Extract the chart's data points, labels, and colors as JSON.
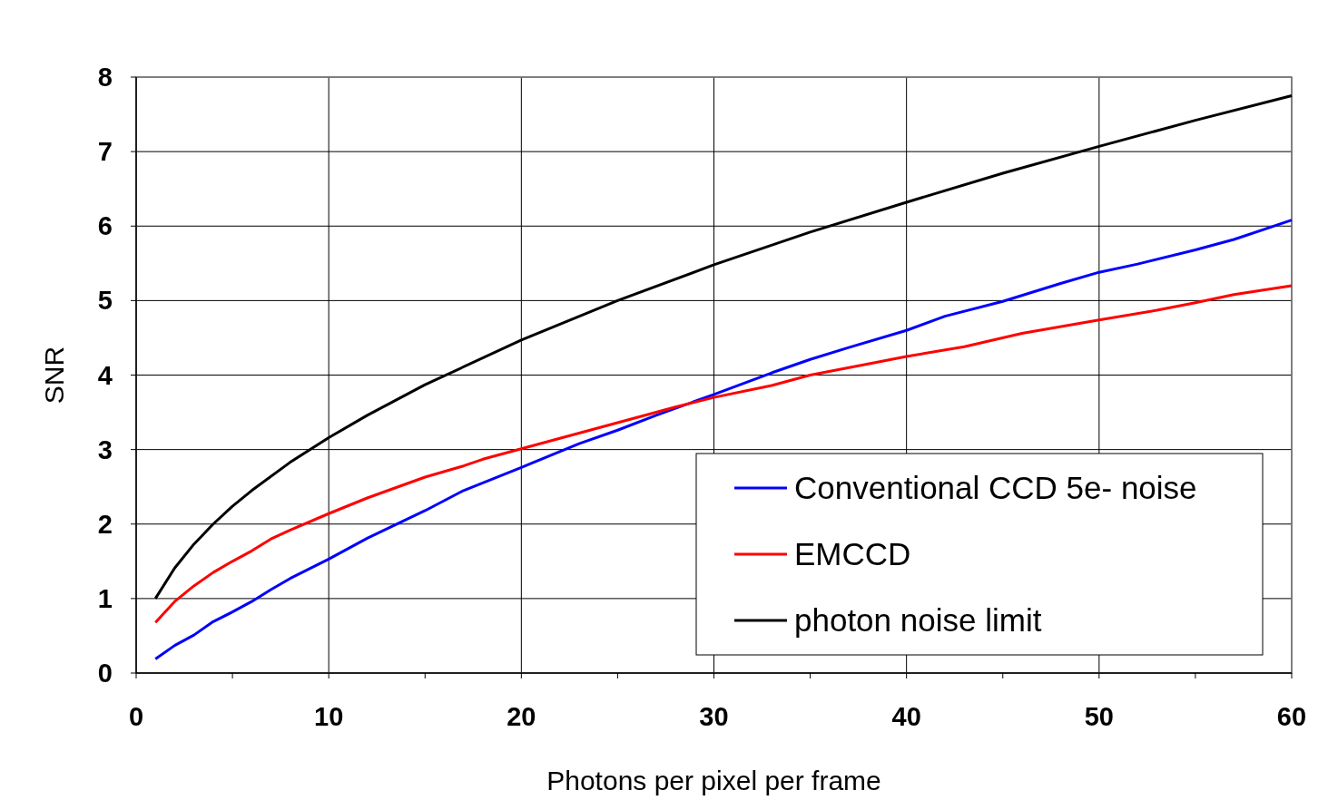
{
  "chart_data": {
    "type": "line",
    "xlabel": "Photons per pixel per frame",
    "ylabel": "SNR",
    "xlim": [
      0,
      60
    ],
    "ylim": [
      0,
      8
    ],
    "xticks": [
      0,
      {
        "value": 5,
        "label": null
      },
      10,
      {
        "value": 15,
        "label": null
      },
      20,
      {
        "value": 25,
        "label": null
      },
      30,
      {
        "value": 35,
        "label": null
      },
      40,
      {
        "value": 45,
        "label": null
      },
      50,
      {
        "value": 55,
        "label": null
      },
      60
    ],
    "yticks": [
      0,
      1,
      2,
      3,
      4,
      5,
      6,
      7,
      8
    ],
    "grid": true,
    "legend": "bottom right",
    "marker": "none",
    "line_style": "solid",
    "series": [
      {
        "name": "Conventional CCD 5e- noise",
        "color": "#0000ff",
        "x": [
          1,
          2,
          3,
          4,
          5,
          6,
          7,
          8,
          10,
          12,
          15,
          17,
          20,
          23,
          25,
          27,
          30,
          33,
          35,
          37,
          40,
          42,
          45,
          48,
          50,
          52,
          55,
          57,
          60
        ],
        "values": [
          0.19,
          0.37,
          0.51,
          0.69,
          0.82,
          0.96,
          1.12,
          1.27,
          1.53,
          1.81,
          2.18,
          2.45,
          2.76,
          3.08,
          3.26,
          3.46,
          3.74,
          4.03,
          4.21,
          4.37,
          4.6,
          4.79,
          4.99,
          5.23,
          5.38,
          5.49,
          5.68,
          5.82,
          6.08
        ]
      },
      {
        "name": "EMCCD",
        "color": "#ff0000",
        "x": [
          1,
          2,
          3,
          4,
          5,
          6,
          7,
          8,
          10,
          12,
          15,
          17,
          18,
          20,
          23,
          25,
          28,
          30,
          33,
          35,
          38,
          40,
          43,
          46,
          50,
          53,
          55,
          57,
          60
        ],
        "values": [
          0.68,
          0.96,
          1.17,
          1.35,
          1.5,
          1.64,
          1.8,
          1.92,
          2.14,
          2.35,
          2.63,
          2.78,
          2.87,
          3.01,
          3.22,
          3.36,
          3.57,
          3.7,
          3.86,
          4.0,
          4.15,
          4.25,
          4.38,
          4.56,
          4.74,
          4.87,
          4.97,
          5.08,
          5.2
        ]
      },
      {
        "name": "photon noise limit",
        "color": "#000000",
        "x": [
          1,
          2,
          3,
          4,
          5,
          6,
          8,
          10,
          12,
          15,
          20,
          25,
          30,
          35,
          40,
          45,
          50,
          55,
          60
        ],
        "values": [
          1,
          1.41,
          1.73,
          2,
          2.24,
          2.45,
          2.83,
          3.16,
          3.46,
          3.87,
          4.47,
          5,
          5.48,
          5.92,
          6.32,
          6.71,
          7.07,
          7.42,
          7.75
        ]
      }
    ]
  }
}
